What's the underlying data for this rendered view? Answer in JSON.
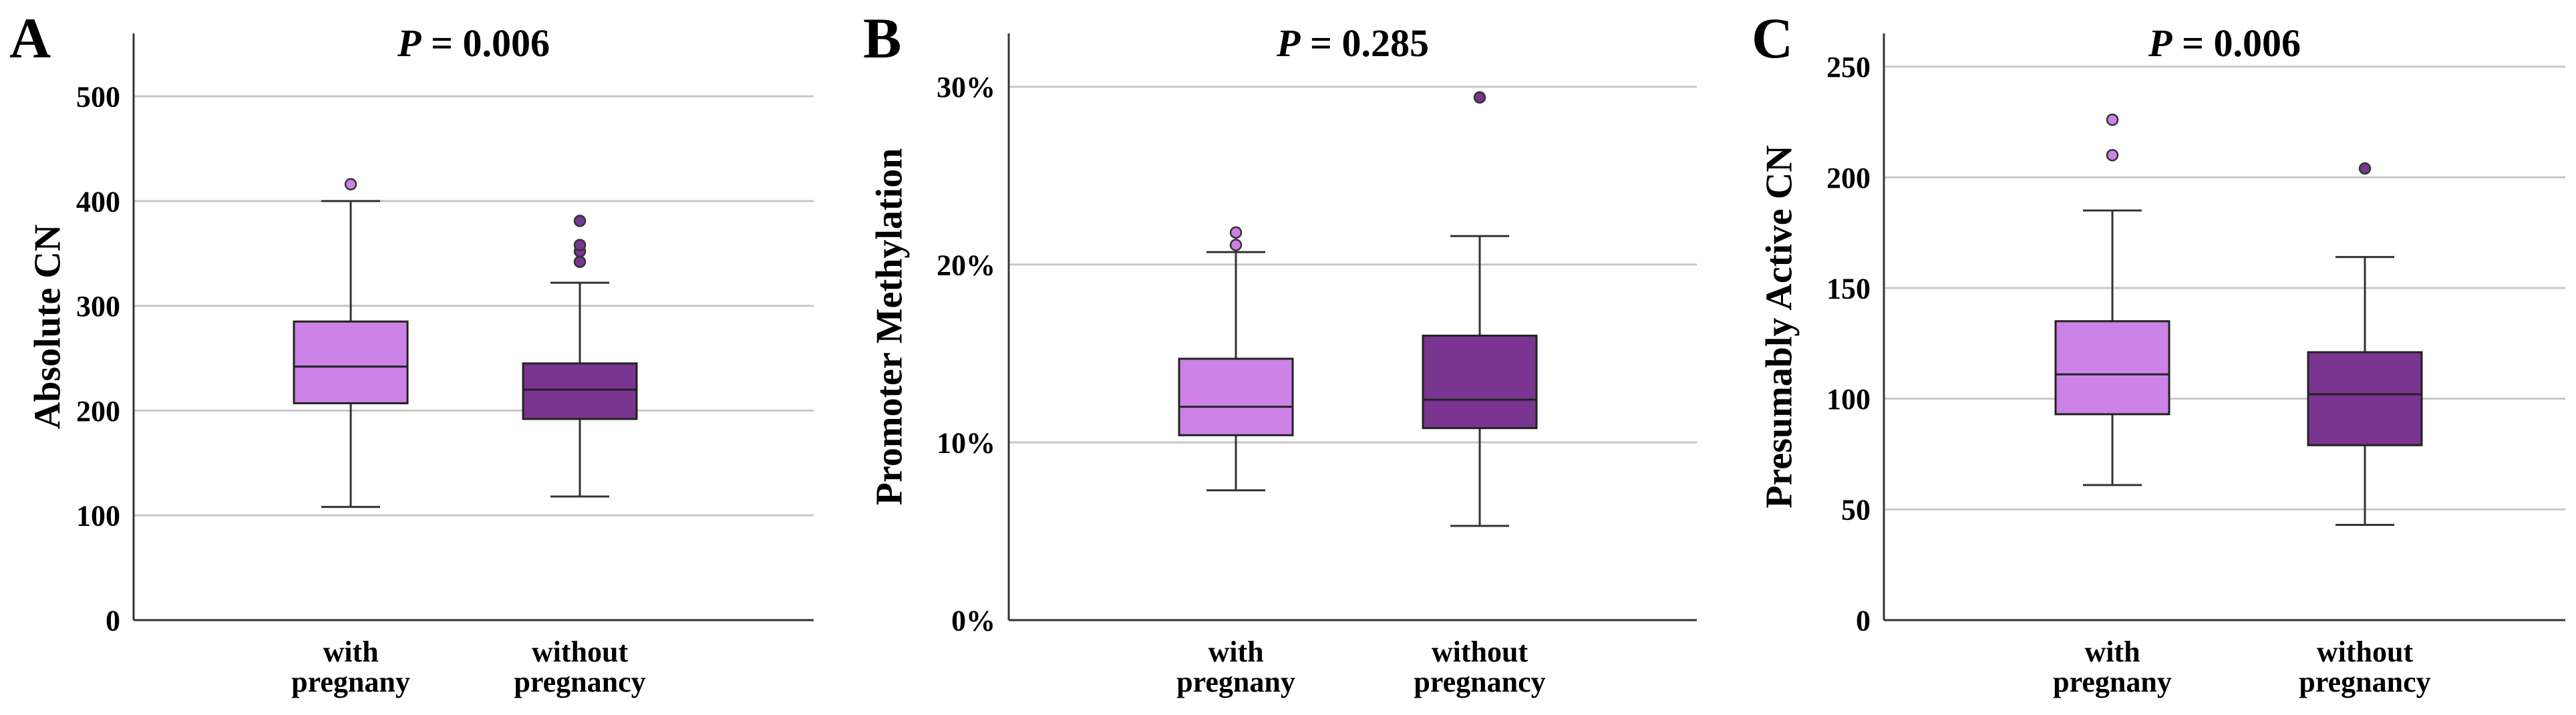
{
  "colors": {
    "with": "#cd82e7",
    "without": "#7a3590",
    "grid": "#c8c8c8",
    "axis": "#333333"
  },
  "chart_data": [
    {
      "type": "box",
      "panel_letter": "A",
      "title_prefix": "P",
      "title_value": " = 0.006",
      "ylabel": "Absolute CN",
      "ylim": [
        0,
        560
      ],
      "yticks": [
        0,
        100,
        200,
        300,
        400,
        500
      ],
      "ytick_labels": [
        "0",
        "100",
        "200",
        "300",
        "400",
        "500"
      ],
      "categories": [
        {
          "line1": "with",
          "line2": "pregnany"
        },
        {
          "line1": "without",
          "line2": "pregnancy"
        }
      ],
      "series": [
        {
          "name": "with pregnany",
          "whisker_low": 108,
          "q1": 207,
          "median": 242,
          "q3": 285,
          "whisker_high": 400,
          "outliers": [
            416
          ]
        },
        {
          "name": "without pregnancy",
          "whisker_low": 118,
          "q1": 192,
          "median": 220,
          "q3": 245,
          "whisker_high": 322,
          "outliers": [
            342,
            352,
            358,
            381
          ]
        }
      ]
    },
    {
      "type": "box",
      "panel_letter": "B",
      "title_prefix": "P",
      "title_value": " = 0.285",
      "ylabel": "Promoter Methylation",
      "ylim": [
        0,
        33
      ],
      "yticks": [
        0,
        10,
        20,
        30
      ],
      "ytick_labels": [
        "0%",
        "10%",
        "20%",
        "30%"
      ],
      "categories": [
        {
          "line1": "with",
          "line2": "pregnany"
        },
        {
          "line1": "without",
          "line2": "pregnancy"
        }
      ],
      "series": [
        {
          "name": "with pregnany",
          "whisker_low": 7.3,
          "q1": 10.4,
          "median": 12.0,
          "q3": 14.7,
          "whisker_high": 20.7,
          "outliers": [
            21.1,
            21.8
          ]
        },
        {
          "name": "without pregnancy",
          "whisker_low": 5.3,
          "q1": 10.8,
          "median": 12.4,
          "q3": 16.0,
          "whisker_high": 21.6,
          "outliers": [
            29.4
          ]
        }
      ]
    },
    {
      "type": "box",
      "panel_letter": "C",
      "title_prefix": "P",
      "title_value": " = 0.006",
      "ylabel": "Presumably Active CN",
      "ylim": [
        0,
        265
      ],
      "yticks": [
        0,
        50,
        100,
        150,
        200,
        250
      ],
      "ytick_labels": [
        "0",
        "50",
        "100",
        "150",
        "200",
        "250"
      ],
      "categories": [
        {
          "line1": "with",
          "line2": "pregnany"
        },
        {
          "line1": "without",
          "line2": "pregnancy"
        }
      ],
      "series": [
        {
          "name": "with pregnany",
          "whisker_low": 61,
          "q1": 93,
          "median": 111,
          "q3": 135,
          "whisker_high": 185,
          "outliers": [
            210,
            226
          ]
        },
        {
          "name": "without pregnancy",
          "whisker_low": 43,
          "q1": 79,
          "median": 102,
          "q3": 121,
          "whisker_high": 164,
          "outliers": [
            204
          ]
        }
      ]
    }
  ]
}
